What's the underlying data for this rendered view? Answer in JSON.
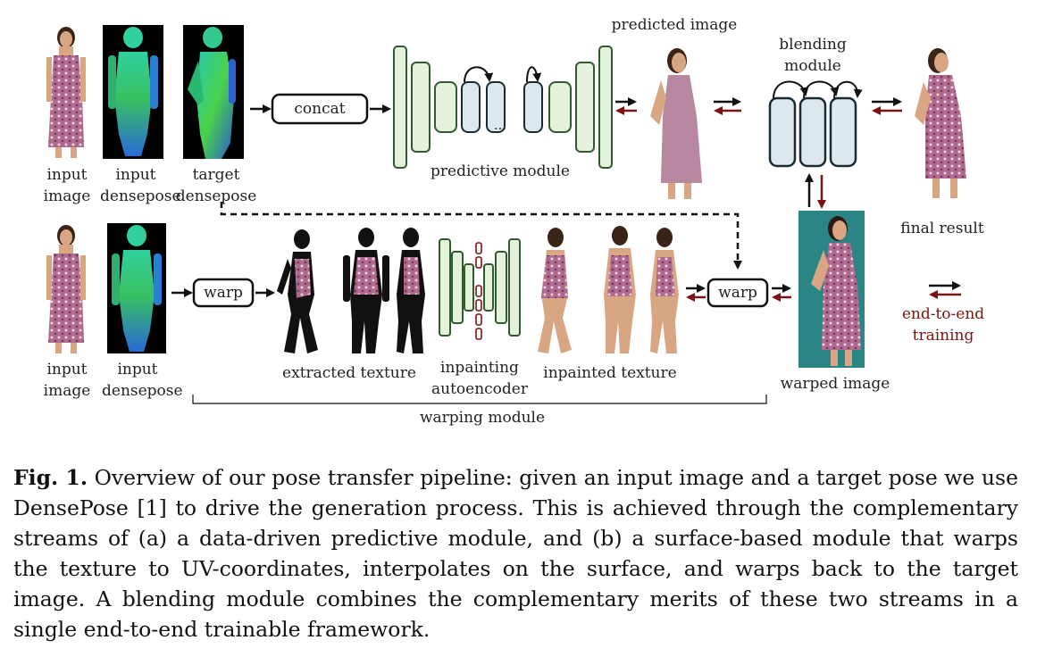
{
  "labels": {
    "input_image_1": "input\nimage",
    "input_densepose_1": "input\ndensepose",
    "target_densepose": "target\ndensepose",
    "concat": "concat",
    "predictive_module": "predictive module",
    "predicted_image": "predicted image",
    "blending_module": "blending\nmodule",
    "final_result": "final result",
    "input_image_2": "input\nimage",
    "input_densepose_2": "input\ndensepose",
    "warp_1": "warp",
    "extracted_texture": "extracted texture",
    "inpainting_autoencoder": "inpainting\nautoencoder",
    "inpainted_texture": "inpainted texture",
    "warp_2": "warp",
    "warped_image": "warped image",
    "warping_module": "warping module",
    "end_to_end_training": "end-to-end\ntraining",
    "ellipsis": "..."
  },
  "caption": {
    "fig_label": "Fig. 1.",
    "text": "Overview of our pose transfer pipeline: given an input image and a target pose we use DensePose [1] to drive the generation process. This is achieved through the complementary streams of (a) a data-driven predictive module, and (b) a surface-based module that warps the texture to UV-coordinates, interpolates on the surface, and warps back to the target image. A blending module combines the complementary merits of these two streams in a single end-to-end trainable framework."
  },
  "colors": {
    "predictive_blocks": "#e4f2dc",
    "predictive_border": "#2f5b2f",
    "blue_blocks": "#dce8ee",
    "blue_border": "#1a2a33",
    "red_arrow": "#7a1414",
    "dress": "#b06a8e",
    "skin": "#d9a684",
    "hair": "#3a2418",
    "densepose_bg": "#000000",
    "warped_bg": "#2c8585"
  }
}
